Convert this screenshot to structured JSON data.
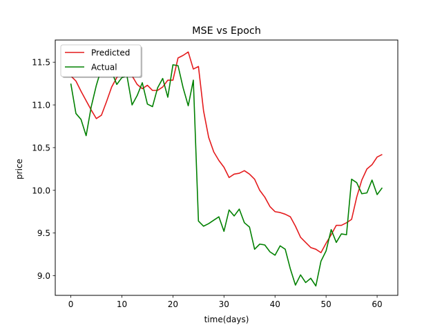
{
  "chart_data": {
    "type": "line",
    "title": "MSE vs Epoch",
    "xlabel": "time(days)",
    "ylabel": "price",
    "xlim": [
      -3.05,
      64.05
    ],
    "ylim": [
      8.77,
      11.76
    ],
    "xticks": [
      0,
      10,
      20,
      30,
      40,
      50,
      60
    ],
    "xtick_labels": [
      "0",
      "10",
      "20",
      "30",
      "40",
      "50",
      "60"
    ],
    "yticks": [
      9.0,
      9.5,
      10.0,
      10.5,
      11.0,
      11.5
    ],
    "ytick_labels": [
      "9.0",
      "9.5",
      "10.0",
      "10.5",
      "11.0",
      "11.5"
    ],
    "grid": false,
    "legend_position": "top-left",
    "x": [
      0,
      1,
      2,
      3,
      4,
      5,
      6,
      7,
      8,
      9,
      10,
      11,
      12,
      13,
      14,
      15,
      16,
      17,
      18,
      19,
      20,
      21,
      22,
      23,
      24,
      25,
      26,
      27,
      28,
      29,
      30,
      31,
      32,
      33,
      34,
      35,
      36,
      37,
      38,
      39,
      40,
      41,
      42,
      43,
      44,
      45,
      46,
      47,
      48,
      49,
      50,
      51,
      52,
      53,
      54,
      55,
      56,
      57,
      58,
      59,
      60,
      61
    ],
    "series": [
      {
        "name": "Predicted",
        "color": "#e41a1c",
        "values": [
          11.34,
          11.28,
          11.16,
          11.05,
          10.94,
          10.84,
          10.88,
          11.04,
          11.21,
          11.32,
          11.4,
          11.39,
          11.34,
          11.24,
          11.19,
          11.23,
          11.17,
          11.17,
          11.21,
          11.29,
          11.29,
          11.55,
          11.58,
          11.62,
          11.42,
          11.45,
          10.93,
          10.62,
          10.45,
          10.35,
          10.27,
          10.15,
          10.19,
          10.2,
          10.23,
          10.19,
          10.13,
          10.0,
          9.92,
          9.81,
          9.75,
          9.74,
          9.72,
          9.69,
          9.58,
          9.45,
          9.39,
          9.33,
          9.31,
          9.27,
          9.38,
          9.48,
          9.59,
          9.59,
          9.62,
          9.66,
          9.92,
          10.12,
          10.25,
          10.3,
          10.39,
          10.42
        ]
      },
      {
        "name": "Actual",
        "color": "#008000",
        "values": [
          11.25,
          10.9,
          10.83,
          10.64,
          10.98,
          11.23,
          11.43,
          11.4,
          11.39,
          11.24,
          11.32,
          11.34,
          11.0,
          11.11,
          11.26,
          11.01,
          10.98,
          11.2,
          11.31,
          11.09,
          11.47,
          11.46,
          11.2,
          10.99,
          11.29,
          9.64,
          9.58,
          9.61,
          9.65,
          9.69,
          9.52,
          9.77,
          9.7,
          9.78,
          9.62,
          9.57,
          9.31,
          9.37,
          9.36,
          9.28,
          9.24,
          9.35,
          9.31,
          9.08,
          8.89,
          9.01,
          8.92,
          8.97,
          8.88,
          9.17,
          9.29,
          9.54,
          9.39,
          9.49,
          9.48,
          10.13,
          10.09,
          9.96,
          9.97,
          10.12,
          9.95,
          10.03
        ]
      }
    ]
  }
}
